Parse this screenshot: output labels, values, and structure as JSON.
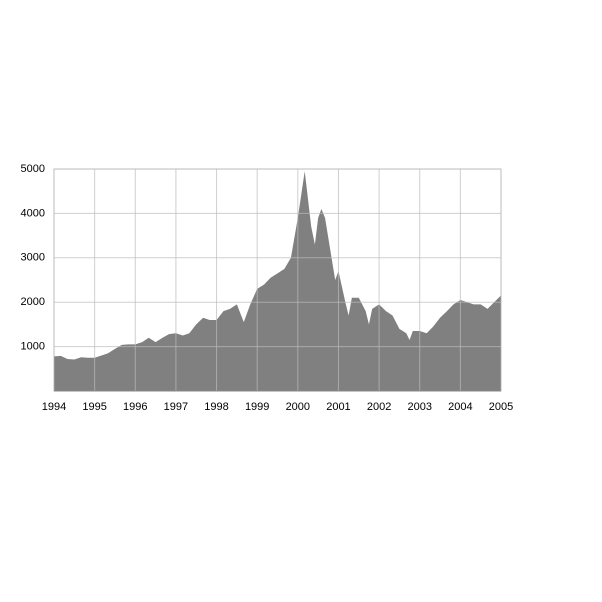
{
  "chart_data": {
    "type": "area",
    "color": "#808080",
    "grid": true,
    "x": [
      1994.0,
      1994.17,
      1994.33,
      1994.5,
      1994.67,
      1994.83,
      1995.0,
      1995.17,
      1995.33,
      1995.5,
      1995.67,
      1995.83,
      1996.0,
      1996.17,
      1996.33,
      1996.5,
      1996.67,
      1996.83,
      1997.0,
      1997.17,
      1997.33,
      1997.5,
      1997.67,
      1997.83,
      1998.0,
      1998.17,
      1998.33,
      1998.5,
      1998.67,
      1998.83,
      1999.0,
      1999.17,
      1999.33,
      1999.5,
      1999.67,
      1999.83,
      2000.0,
      2000.17,
      2000.33,
      2000.42,
      2000.5,
      2000.58,
      2000.67,
      2000.83,
      2000.92,
      2001.0,
      2001.17,
      2001.25,
      2001.33,
      2001.5,
      2001.67,
      2001.75,
      2001.83,
      2002.0,
      2002.17,
      2002.33,
      2002.5,
      2002.67,
      2002.75,
      2002.83,
      2003.0,
      2003.17,
      2003.33,
      2003.5,
      2003.67,
      2003.83,
      2004.0,
      2004.17,
      2004.33,
      2004.5,
      2004.67,
      2004.83,
      2005.0
    ],
    "values": [
      780,
      790,
      720,
      710,
      760,
      750,
      750,
      800,
      850,
      950,
      1040,
      1050,
      1050,
      1100,
      1200,
      1100,
      1200,
      1280,
      1300,
      1250,
      1300,
      1500,
      1650,
      1600,
      1600,
      1800,
      1850,
      1950,
      1550,
      1950,
      2300,
      2400,
      2550,
      2650,
      2750,
      3000,
      3900,
      4950,
      3700,
      3300,
      3900,
      4100,
      3900,
      3000,
      2500,
      2700,
      2000,
      1700,
      2100,
      2100,
      1800,
      1500,
      1850,
      1950,
      1800,
      1700,
      1400,
      1300,
      1150,
      1350,
      1350,
      1300,
      1450,
      1650,
      1800,
      1950,
      2050,
      2000,
      1950,
      1950,
      1850,
      2000,
      2150
    ],
    "xlim": [
      1994,
      2005
    ],
    "xticks": [
      1994,
      1995,
      1996,
      1997,
      1998,
      1999,
      2000,
      2001,
      2002,
      2003,
      2004,
      2005
    ],
    "ylim": [
      0,
      5000
    ],
    "yticks": [
      1000,
      2000,
      3000,
      4000,
      5000
    ]
  }
}
